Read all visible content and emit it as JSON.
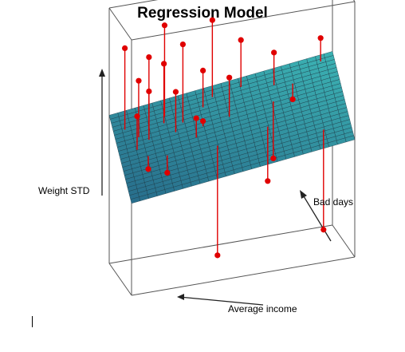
{
  "chart_data": {
    "type": "scatter",
    "subtype": "3d-regression-plane",
    "title": "Regression Model",
    "xlabel": "Average income",
    "ylabel": "Weight STD",
    "zlabel": "Bad days",
    "grid": false,
    "legend": "none",
    "plane_color": "#3a9aa8",
    "point_color": "#e00000",
    "points": [
      {
        "x": 0.06,
        "z": 0.93,
        "y": 0.75,
        "fit": 0.55
      },
      {
        "x": 0.2,
        "z": 0.78,
        "y": 0.55,
        "fit": 0.5
      },
      {
        "x": 0.42,
        "z": 0.9,
        "y": 0.8,
        "fit": 0.58
      },
      {
        "x": 0.55,
        "z": 0.88,
        "y": 0.9,
        "fit": 0.6
      },
      {
        "x": 0.77,
        "z": 0.82,
        "y": 0.92,
        "fit": 0.62
      },
      {
        "x": 0.3,
        "z": 0.65,
        "y": 0.35,
        "fit": 0.46
      },
      {
        "x": 0.5,
        "z": 0.62,
        "y": 0.7,
        "fit": 0.52
      },
      {
        "x": 0.62,
        "z": 0.6,
        "y": 0.55,
        "fit": 0.53
      },
      {
        "x": 0.7,
        "z": 0.7,
        "y": 0.85,
        "fit": 0.57
      },
      {
        "x": 0.78,
        "z": 0.75,
        "y": 0.78,
        "fit": 0.59
      },
      {
        "x": 0.85,
        "z": 0.72,
        "y": 0.82,
        "fit": 0.6
      },
      {
        "x": 0.9,
        "z": 0.68,
        "y": 0.74,
        "fit": 0.6
      },
      {
        "x": 0.35,
        "z": 0.4,
        "y": 0.3,
        "fit": 0.42
      },
      {
        "x": 0.58,
        "z": 0.35,
        "y": 0.05,
        "fit": 0.44
      },
      {
        "x": 0.12,
        "z": 0.2,
        "y": 0.1,
        "fit": 0.38
      },
      {
        "x": 0.8,
        "z": 0.4,
        "y": 0.4,
        "fit": 0.49
      },
      {
        "x": 0.88,
        "z": 0.45,
        "y": 0.42,
        "fit": 0.51
      },
      {
        "x": 0.66,
        "z": 0.5,
        "y": 0.58,
        "fit": 0.5
      },
      {
        "x": 0.92,
        "z": 0.55,
        "y": 0.62,
        "fit": 0.55
      },
      {
        "x": 0.74,
        "z": 0.62,
        "y": 0.68,
        "fit": 0.55
      },
      {
        "x": 0.6,
        "z": 0.8,
        "y": 0.72,
        "fit": 0.59
      },
      {
        "x": 0.86,
        "z": 0.62,
        "y": 0.7,
        "fit": 0.57
      },
      {
        "x": 0.95,
        "z": 0.8,
        "y": 0.86,
        "fit": 0.63
      },
      {
        "x": 0.28,
        "z": 0.82,
        "y": 0.74,
        "fit": 0.54
      }
    ]
  }
}
